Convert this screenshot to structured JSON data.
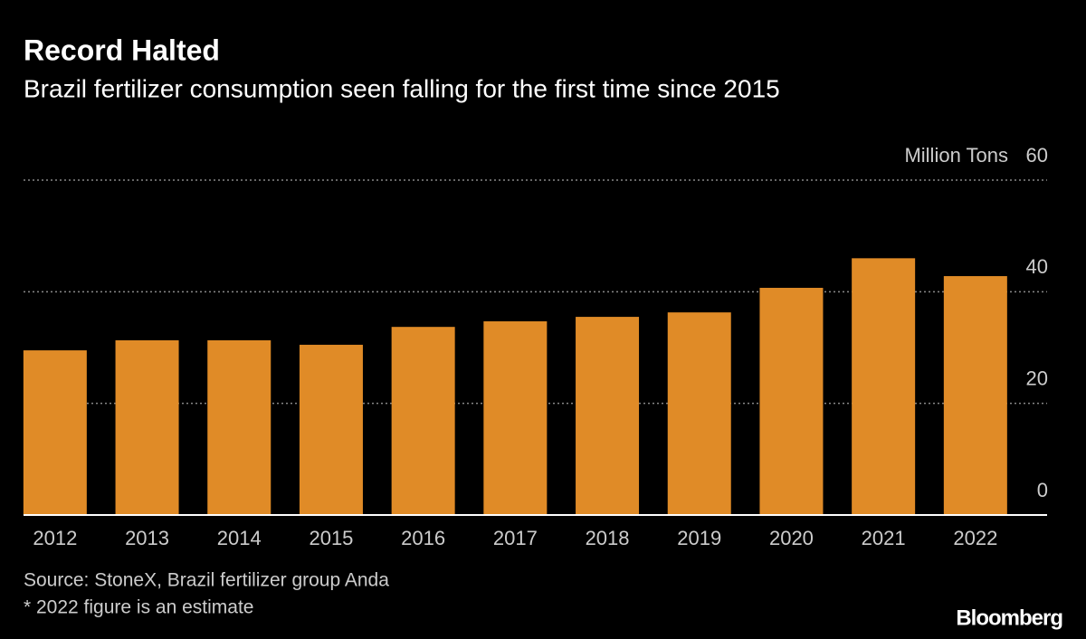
{
  "chart_data": {
    "type": "bar",
    "title": "Record Halted",
    "subtitle": "Brazil fertilizer consumption seen falling for the first time since 2015",
    "y_label": "Million Tons",
    "categories": [
      "2012",
      "2013",
      "2014",
      "2015",
      "2016",
      "2017",
      "2018",
      "2019",
      "2020",
      "2021",
      "2022"
    ],
    "values": [
      29.5,
      31.3,
      31.3,
      30.5,
      33.7,
      34.7,
      35.5,
      36.3,
      40.7,
      46.0,
      42.8
    ],
    "color": "#e08b27",
    "ylim": [
      0,
      60
    ],
    "yticks": [
      0,
      20,
      40,
      60
    ],
    "grid": true,
    "source": "Source: StoneX, Brazil fertilizer group Anda",
    "note": "* 2022 figure is an estimate",
    "brand": "Bloomberg"
  }
}
